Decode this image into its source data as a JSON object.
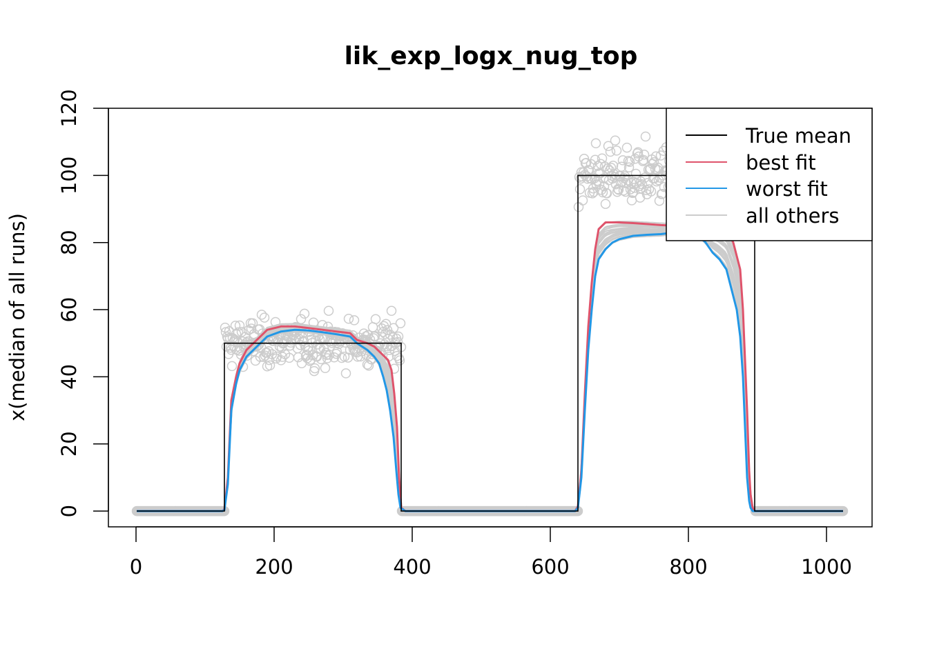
{
  "chart_data": {
    "type": "line",
    "title": "lik_exp_logx_nug_top",
    "xlabel": "",
    "ylabel": "x(median of all runs)",
    "xlim": [
      -40,
      1066
    ],
    "ylim": [
      -4.7,
      120
    ],
    "x_ticks": [
      0,
      200,
      400,
      600,
      800,
      1000
    ],
    "y_ticks": [
      0,
      20,
      40,
      60,
      80,
      100,
      120
    ],
    "x_tick_labels": [
      "0",
      "200",
      "400",
      "600",
      "800",
      "1000"
    ],
    "y_tick_labels": [
      "0",
      "20",
      "40",
      "60",
      "80",
      "100",
      "120"
    ],
    "legend": {
      "position": "top-right",
      "entries": [
        {
          "label": "True mean",
          "color": "#000000"
        },
        {
          "label": "best fit",
          "color": "#DF536B"
        },
        {
          "label": "worst fit",
          "color": "#2297E6"
        },
        {
          "label": "all others",
          "color": "#CCCCCC"
        }
      ]
    },
    "true_mean": {
      "name": "True mean",
      "color": "#000000",
      "x": [
        1,
        128,
        128,
        384,
        384,
        640,
        640,
        896,
        896,
        1024
      ],
      "y": [
        0,
        0,
        50,
        50,
        0,
        0,
        100,
        100,
        0,
        0
      ]
    },
    "observations": {
      "color": "#CCCCCC",
      "segments": [
        {
          "x_range": [
            1,
            128
          ],
          "mean": 0,
          "sd": 0
        },
        {
          "x_range": [
            129,
            384
          ],
          "mean": 50,
          "sd": 3.5
        },
        {
          "x_range": [
            385,
            640
          ],
          "mean": 0,
          "sd": 0
        },
        {
          "x_range": [
            641,
            896
          ],
          "mean": 100,
          "sd": 4.5
        },
        {
          "x_range": [
            897,
            1024
          ],
          "mean": 0,
          "sd": 0
        }
      ]
    },
    "series": [
      {
        "name": "best fit",
        "color": "#DF536B",
        "x": [
          1,
          125,
          128,
          133,
          138,
          145,
          150,
          160,
          175,
          190,
          210,
          230,
          250,
          270,
          290,
          310,
          320,
          335,
          345,
          355,
          360,
          365,
          370,
          374,
          378,
          381,
          384,
          390,
          600,
          636,
          640,
          645,
          650,
          655,
          660,
          665,
          670,
          680,
          690,
          700,
          720,
          740,
          760,
          780,
          800,
          820,
          840,
          855,
          860,
          865,
          870,
          875,
          879,
          882,
          885,
          888,
          890,
          893,
          896,
          900,
          1024
        ],
        "y": [
          0,
          0,
          0.5,
          10,
          33,
          40,
          44,
          48,
          51,
          54,
          55,
          55,
          54.5,
          54,
          53.5,
          53,
          51,
          50,
          49,
          47,
          46,
          45,
          42,
          35,
          25,
          10,
          1,
          0,
          0,
          0,
          1.5,
          12,
          35,
          55,
          68,
          78,
          84,
          86,
          86,
          86,
          85.8,
          85.5,
          85.2,
          85,
          85,
          85,
          85,
          84,
          82,
          80,
          76,
          72,
          60,
          45,
          30,
          12,
          5,
          1,
          0,
          0,
          0
        ]
      },
      {
        "name": "worst fit",
        "color": "#2297E6",
        "x": [
          1,
          125,
          128,
          133,
          138,
          145,
          150,
          160,
          175,
          190,
          210,
          230,
          250,
          270,
          290,
          310,
          320,
          335,
          345,
          352,
          358,
          363,
          368,
          373,
          377,
          380,
          383,
          390,
          600,
          636,
          640,
          645,
          650,
          655,
          660,
          665,
          670,
          680,
          690,
          700,
          720,
          740,
          760,
          780,
          800,
          815,
          825,
          835,
          845,
          855,
          860,
          865,
          870,
          875,
          879,
          882,
          885,
          888,
          890,
          893,
          896,
          900,
          1024
        ],
        "y": [
          0,
          0,
          0.3,
          8,
          30,
          38,
          42,
          46,
          49,
          52,
          53.5,
          54,
          53.8,
          53.3,
          52.7,
          52,
          50,
          48,
          46,
          44,
          40,
          36,
          30,
          22,
          12,
          5,
          1,
          0,
          0,
          0,
          1,
          10,
          30,
          48,
          60,
          70,
          75,
          78,
          80,
          81,
          82,
          82.3,
          82.5,
          83,
          83,
          82,
          80,
          77,
          75,
          72,
          68,
          64,
          60,
          52,
          40,
          25,
          10,
          3,
          1,
          0,
          0,
          0,
          0
        ]
      }
    ]
  }
}
